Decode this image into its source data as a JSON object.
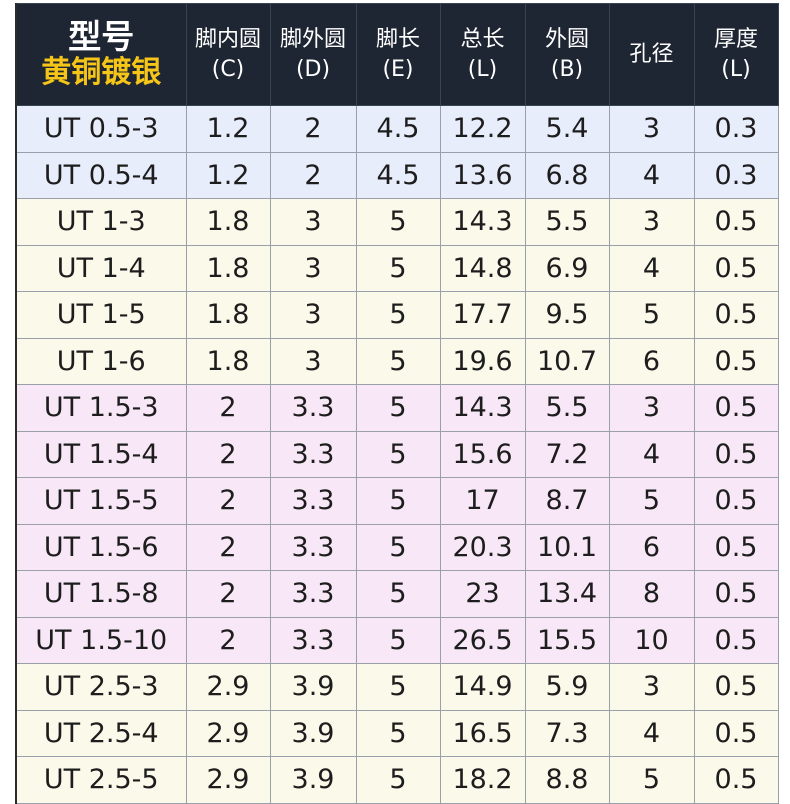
{
  "header": {
    "model_label": "型号",
    "material_label": "黄铜镀银",
    "columns": [
      {
        "name": "脚内圆",
        "unit": "(C)"
      },
      {
        "name": "脚外圆",
        "unit": "(D)"
      },
      {
        "name": "脚长",
        "unit": "(E)"
      },
      {
        "name": "总长",
        "unit": "(L)"
      },
      {
        "name": "外圆",
        "unit": "(B)"
      },
      {
        "name": "孔径",
        "unit": ""
      },
      {
        "name": "厚度",
        "unit": "(L)"
      }
    ]
  },
  "rows": [
    {
      "group": "blue",
      "cells": [
        "UT 0.5-3",
        "1.2",
        "2",
        "4.5",
        "12.2",
        "5.4",
        "3",
        "0.3"
      ]
    },
    {
      "group": "blue",
      "cells": [
        "UT 0.5-4",
        "1.2",
        "2",
        "4.5",
        "13.6",
        "6.8",
        "4",
        "0.3"
      ]
    },
    {
      "group": "cream",
      "cells": [
        "UT 1-3",
        "1.8",
        "3",
        "5",
        "14.3",
        "5.5",
        "3",
        "0.5"
      ]
    },
    {
      "group": "cream",
      "cells": [
        "UT 1-4",
        "1.8",
        "3",
        "5",
        "14.8",
        "6.9",
        "4",
        "0.5"
      ]
    },
    {
      "group": "cream",
      "cells": [
        "UT 1-5",
        "1.8",
        "3",
        "5",
        "17.7",
        "9.5",
        "5",
        "0.5"
      ]
    },
    {
      "group": "cream",
      "cells": [
        "UT 1-6",
        "1.8",
        "3",
        "5",
        "19.6",
        "10.7",
        "6",
        "0.5"
      ]
    },
    {
      "group": "pink",
      "cells": [
        "UT 1.5-3",
        "2",
        "3.3",
        "5",
        "14.3",
        "5.5",
        "3",
        "0.5"
      ]
    },
    {
      "group": "pink",
      "cells": [
        "UT 1.5-4",
        "2",
        "3.3",
        "5",
        "15.6",
        "7.2",
        "4",
        "0.5"
      ]
    },
    {
      "group": "pink",
      "cells": [
        "UT 1.5-5",
        "2",
        "3.3",
        "5",
        "17",
        "8.7",
        "5",
        "0.5"
      ]
    },
    {
      "group": "pink",
      "cells": [
        "UT 1.5-6",
        "2",
        "3.3",
        "5",
        "20.3",
        "10.1",
        "6",
        "0.5"
      ]
    },
    {
      "group": "pink",
      "cells": [
        "UT 1.5-8",
        "2",
        "3.3",
        "5",
        "23",
        "13.4",
        "8",
        "0.5"
      ]
    },
    {
      "group": "pink",
      "cells": [
        "UT 1.5-10",
        "2",
        "3.3",
        "5",
        "26.5",
        "15.5",
        "10",
        "0.5"
      ]
    },
    {
      "group": "cream",
      "cells": [
        "UT 2.5-3",
        "2.9",
        "3.9",
        "5",
        "14.9",
        "5.9",
        "3",
        "0.5"
      ]
    },
    {
      "group": "cream",
      "cells": [
        "UT 2.5-4",
        "2.9",
        "3.9",
        "5",
        "16.5",
        "7.3",
        "4",
        "0.5"
      ]
    },
    {
      "group": "cream",
      "cells": [
        "UT 2.5-5",
        "2.9",
        "3.9",
        "5",
        "18.2",
        "8.8",
        "5",
        "0.5"
      ]
    }
  ],
  "colors": {
    "header_bg": "#1f2633",
    "header_text": "#ffffff",
    "material_text": "#f5c518",
    "group_blue": "#e8edfb",
    "group_cream": "#fbf9ea",
    "group_pink": "#f8e8f7",
    "grid_line": "#9aa0aa"
  }
}
